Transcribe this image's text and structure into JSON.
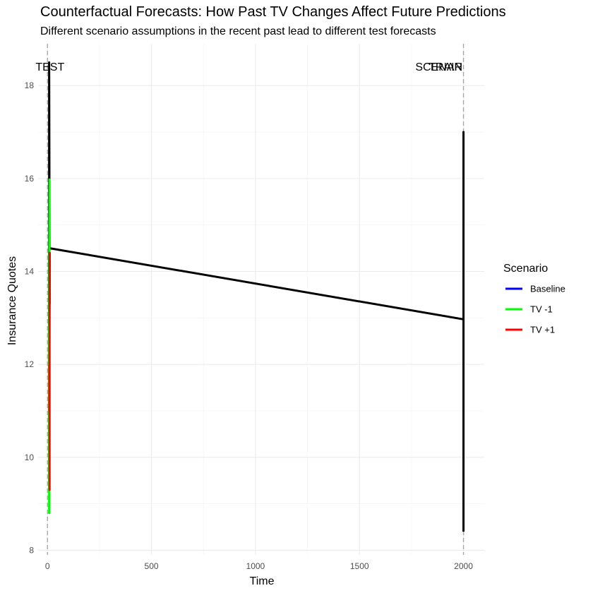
{
  "chart_data": {
    "type": "line",
    "title": "Counterfactual Forecasts: How Past TV Changes Affect Future Predictions",
    "subtitle": "Different scenario assumptions in the recent past lead to different test forecasts",
    "xlabel": "Time",
    "ylabel": "Insurance Quotes",
    "xlim": [
      -45,
      2100
    ],
    "ylim": [
      7.9,
      18.9
    ],
    "x_ticks": [
      0,
      500,
      1000,
      1500,
      2000
    ],
    "y_ticks": [
      8,
      10,
      12,
      14,
      16,
      18
    ],
    "grid": true,
    "legend_title": "Scenario",
    "legend_position": "right",
    "series": [
      {
        "name": "Baseline",
        "color": "#0000ff"
      },
      {
        "name": "TV -1",
        "color": "#00ff00"
      },
      {
        "name": "TV +1",
        "color": "#ff0000"
      }
    ],
    "observed_lines": [
      {
        "color": "#000000",
        "x": [
          2000,
          2000,
          2000,
          2000,
          2000,
          2000,
          2000,
          2000,
          2000
        ],
        "y": [
          8.4,
          17.0,
          9.0,
          16.5,
          10.0,
          15.5,
          11.5,
          14.0,
          12.97
        ]
      },
      {
        "color": "#000000",
        "x": [
          2000,
          10
        ],
        "y": [
          12.97,
          14.5
        ]
      },
      {
        "color": "#000000",
        "x": [
          10,
          8,
          8,
          8,
          8,
          8
        ],
        "y": [
          14.5,
          18.5,
          13.5,
          17.5,
          12.8,
          14.5
        ]
      }
    ],
    "scenario_lines": [
      {
        "series": "TV -1",
        "color": "#00ff00",
        "x": [
          10,
          10,
          10,
          8,
          8,
          7,
          7
        ],
        "y": [
          16.0,
          14.6,
          15.5,
          12.4,
          8.8,
          12.8,
          12.0
        ]
      },
      {
        "series": "TV +1",
        "color": "#ff0000",
        "x": [
          11,
          11,
          10,
          10,
          10,
          9,
          9
        ],
        "y": [
          13.3,
          14.4,
          12.5,
          9.3,
          12.5,
          11.0,
          12.0
        ]
      }
    ],
    "vlines": [
      0,
      2000
    ],
    "annotations": [
      {
        "text": "TEST",
        "x": 12,
        "y": 18.4,
        "align": "center"
      },
      {
        "text": "SCENAR",
        "x": 1995,
        "y": 18.4,
        "align": "end"
      },
      {
        "text": "TRAIN",
        "x": 1995,
        "y": 18.4,
        "align": "end"
      }
    ]
  }
}
